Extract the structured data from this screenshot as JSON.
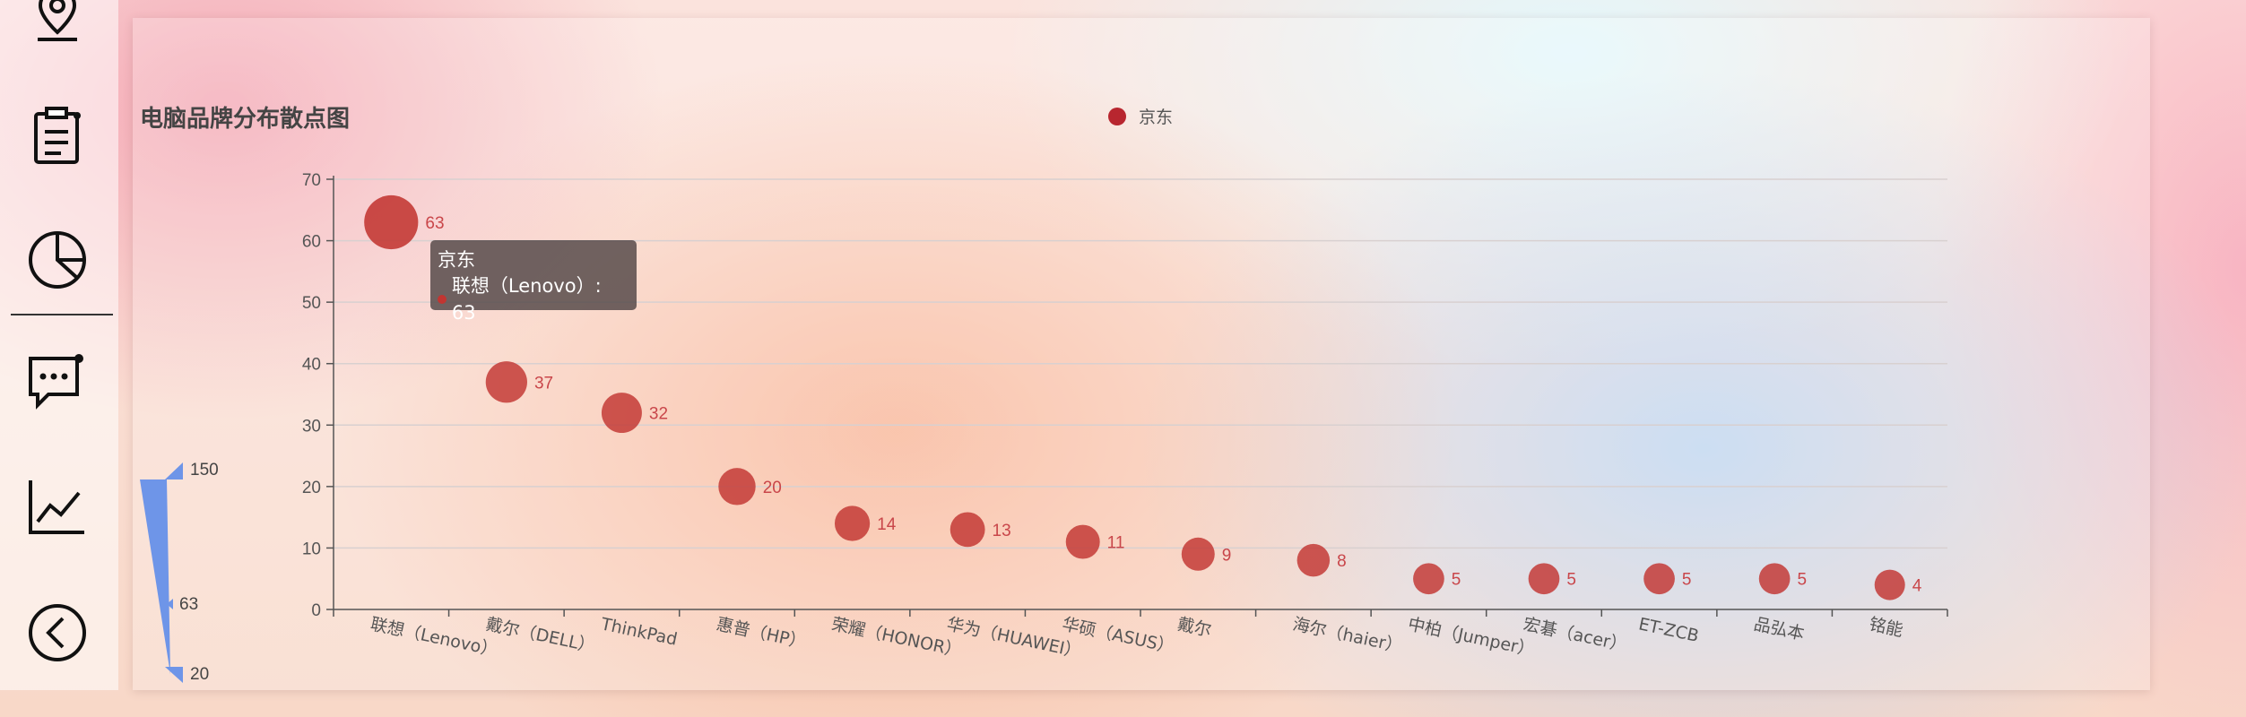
{
  "sidebar": {
    "icons": [
      "map-pin-icon",
      "clipboard-icon",
      "pie-chart-icon",
      "chat-icon",
      "line-chart-icon",
      "back-icon"
    ]
  },
  "chart_data": {
    "type": "scatter",
    "title": "电脑品牌分布散点图",
    "legend": {
      "items": [
        "京东"
      ],
      "position": "top-center"
    },
    "categories": [
      "联想（Lenovo）",
      "戴尔（DELL）",
      "ThinkPad",
      "惠普（HP）",
      "荣耀（HONOR）",
      "华为（HUAWEI）",
      "华硕（ASUS）",
      "戴尔",
      "海尔（haier）",
      "中柏（Jumper）",
      "宏碁（acer）",
      "ET-ZCB",
      "品弘本",
      "铭能"
    ],
    "series": [
      {
        "name": "京东",
        "values": [
          63,
          37,
          32,
          20,
          14,
          13,
          11,
          9,
          8,
          5,
          5,
          5,
          5,
          4
        ],
        "color": "#c23531"
      }
    ],
    "ylim": [
      0,
      70
    ],
    "yticks": [
      0,
      10,
      20,
      30,
      40,
      50,
      60,
      70
    ],
    "grid": true,
    "visual_map": {
      "max": "150",
      "min": "20",
      "current": "63",
      "color": "#6e95e8"
    },
    "tooltip": {
      "series": "京东",
      "label": "联想（Lenovo）: 63"
    }
  }
}
